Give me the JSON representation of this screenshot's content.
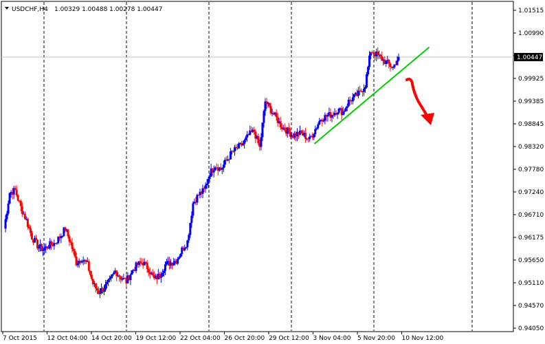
{
  "header": {
    "symbol_timeframe": "USDCHF,H4",
    "ohlc": "1.00329 1.00488 1.00278 1.00447"
  },
  "current_price_label": "1.00447",
  "colors": {
    "bull": "#0000ff",
    "bear": "#ff0000",
    "trendline": "#00cc00",
    "arrow": "#ff0000",
    "grid": "#000000",
    "bid_line": "#c0c0c0"
  },
  "chart_data": {
    "type": "candlestick",
    "title": "USDCHF,H4",
    "y_ticks": [
      "1.01515",
      "1.00990",
      "1.00447",
      "0.99925",
      "0.99385",
      "0.98845",
      "0.98320",
      "0.97780",
      "0.97240",
      "0.96710",
      "0.96175",
      "0.95650",
      "0.95110",
      "0.94570",
      "0.94050"
    ],
    "ylim": [
      0.9405,
      1.0155
    ],
    "x_ticks": [
      "7 Oct 2015",
      "12 Oct 04:00",
      "14 Oct 20:00",
      "19 Oct 12:00",
      "22 Oct 04:00",
      "26 Oct 20:00",
      "29 Oct 12:00",
      "3 Nov 04:00",
      "5 Nov 20:00",
      "10 Nov 12:00"
    ],
    "grid": "vertical dashed",
    "current_price": 1.00447,
    "price_path": [
      0.964,
      0.9725,
      0.973,
      0.969,
      0.966,
      0.962,
      0.96,
      0.959,
      0.96,
      0.9605,
      0.962,
      0.964,
      0.9605,
      0.956,
      0.957,
      0.9555,
      0.951,
      0.949,
      0.95,
      0.9515,
      0.954,
      0.9525,
      0.9515,
      0.954,
      0.9555,
      0.956,
      0.9545,
      0.952,
      0.953,
      0.9555,
      0.956,
      0.9565,
      0.959,
      0.961,
      0.97,
      0.972,
      0.973,
      0.977,
      0.979,
      0.978,
      0.98,
      0.982,
      0.983,
      0.984,
      0.986,
      0.987,
      0.983,
      0.994,
      0.992,
      0.99,
      0.988,
      0.987,
      0.986,
      0.9865,
      0.986,
      0.985,
      0.9875,
      0.99,
      0.9905,
      0.991,
      0.992,
      0.9915,
      0.994,
      0.995,
      0.996,
      0.998,
      1.006,
      1.005,
      1.004,
      1.003,
      1.002,
      1.0045
    ],
    "trendline": {
      "x1": "3 Nov 04:00",
      "y1": 0.984,
      "x2": "10 Nov 12:00",
      "y2": 1.0068
    },
    "annotation": "red curved arrow pointing down"
  }
}
